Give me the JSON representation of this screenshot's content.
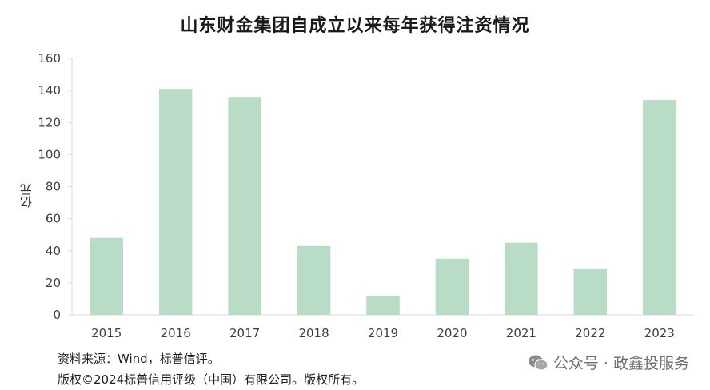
{
  "chart_data": {
    "type": "bar",
    "title": "山东财金集团自成立以来每年获得注资情况",
    "ylabel": "亿元",
    "xlabel": "",
    "categories": [
      "2015",
      "2016",
      "2017",
      "2018",
      "2019",
      "2020",
      "2021",
      "2022",
      "2023"
    ],
    "values": [
      48,
      141,
      136,
      43,
      12,
      35,
      45,
      29,
      134
    ],
    "ylim": [
      0,
      160
    ],
    "yticks": [
      0,
      20,
      40,
      60,
      80,
      100,
      120,
      140,
      160
    ],
    "grid": false,
    "bar_color": "#b9dcc6"
  },
  "footer": {
    "source": "资料来源：Wind，标普信评。",
    "copyright": "版权©2024标普信用评级（中国）有限公司。版权所有。"
  },
  "watermark": {
    "icon": "wechat-icon",
    "text": "公众号 · 政鑫投服务"
  }
}
